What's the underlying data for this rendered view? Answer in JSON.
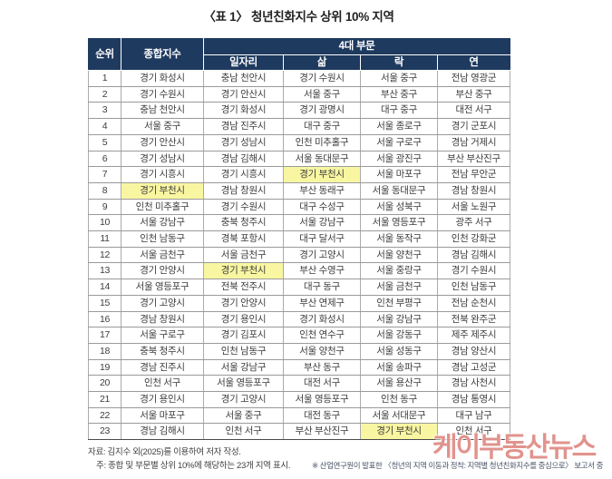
{
  "title": "〈표 1〉 청년친화지수 상위 10% 지역",
  "table": {
    "header": {
      "rank": "순위",
      "composite": "종합지수",
      "group": "4대 부문",
      "sectors": [
        "일자리",
        "삶",
        "락",
        "연"
      ]
    },
    "rows": [
      [
        "1",
        "경기 화성시",
        "충남 천안시",
        "경기 수원시",
        "서울 중구",
        "전남 영광군"
      ],
      [
        "2",
        "경기 수원시",
        "경기 안산시",
        "서울 중구",
        "부산 중구",
        "부산 중구"
      ],
      [
        "3",
        "충남 천안시",
        "경기 화성시",
        "경기 광명시",
        "대구 중구",
        "대전 서구"
      ],
      [
        "4",
        "서울 중구",
        "경남 진주시",
        "대구 중구",
        "서울 종로구",
        "경기 군포시"
      ],
      [
        "5",
        "경기 안산시",
        "경기 성남시",
        "인천 미추홀구",
        "서울 구로구",
        "경남 거제시"
      ],
      [
        "6",
        "경기 성남시",
        "경남 김해시",
        "서울 동대문구",
        "서울 광진구",
        "부산 부산진구"
      ],
      [
        "7",
        "경기 시흥시",
        "경기 시흥시",
        "경기 부천시",
        "서울 마포구",
        "전남 무안군"
      ],
      [
        "8",
        "경기 부천시",
        "경남 창원시",
        "부산 동래구",
        "서울 동대문구",
        "경남 창원시"
      ],
      [
        "9",
        "인천 미추홀구",
        "경기 수원시",
        "대구 수성구",
        "서울 성북구",
        "서울 노원구"
      ],
      [
        "10",
        "서울 강남구",
        "충북 청주시",
        "서울 강남구",
        "서울 영등포구",
        "광주 서구"
      ],
      [
        "11",
        "인천 남동구",
        "경북 포항시",
        "대구 달서구",
        "서울 동작구",
        "인천 강화군"
      ],
      [
        "12",
        "서울 금천구",
        "서울 금천구",
        "경기 고양시",
        "서울 양천구",
        "경남 김해시"
      ],
      [
        "13",
        "경기 안양시",
        "경기 부천시",
        "부산 수영구",
        "서울 중랑구",
        "경기 수원시"
      ],
      [
        "14",
        "서울 영등포구",
        "전북 전주시",
        "대구 동구",
        "서울 금천구",
        "인천 남동구"
      ],
      [
        "15",
        "경기 고양시",
        "경기 안양시",
        "부산 연제구",
        "인천 부평구",
        "전남 순천시"
      ],
      [
        "16",
        "경남 창원시",
        "경기 용인시",
        "경기 화성시",
        "서울 강남구",
        "전북 완주군"
      ],
      [
        "17",
        "서울 구로구",
        "경기 김포시",
        "인천 연수구",
        "서울 강동구",
        "제주 제주시"
      ],
      [
        "18",
        "충북 청주시",
        "인천 남동구",
        "서울 양천구",
        "서울 성동구",
        "경남 양산시"
      ],
      [
        "19",
        "경남 진주시",
        "서울 강남구",
        "부산 동구",
        "서울 송파구",
        "경남 고성군"
      ],
      [
        "20",
        "인천 서구",
        "서울 영등포구",
        "대전 서구",
        "서울 용산구",
        "경남 사천시"
      ],
      [
        "21",
        "경기 용인시",
        "경기 고양시",
        "서울 영등포구",
        "인천 동구",
        "경남 통영시"
      ],
      [
        "22",
        "서울 마포구",
        "서울 중구",
        "대전 동구",
        "서울 서대문구",
        "대구 남구"
      ],
      [
        "23",
        "경남 김해시",
        "인천 서구",
        "부산 부산진구",
        "경기 부천시",
        "인천 서구"
      ]
    ],
    "highlights": [
      [
        6,
        3
      ],
      [
        7,
        1
      ],
      [
        12,
        2
      ],
      [
        22,
        4
      ]
    ]
  },
  "footnotes": {
    "source": "자료: 김지수 외(2025)를 이용하여 저자 작성.",
    "note": "주: 종합 및 부문별 상위 10%에 해당하는 23개 지역 표시.",
    "reference": "※ 산업연구원이 발표한 〈청년의 지역 이동과 정착: 지역별 청년친화지수를 중심으로〉 보고서 중"
  },
  "watermark": "케이부동산뉴스",
  "colors": {
    "header_bg": "#1f3a5f",
    "highlight_bg": "#f9f6a2",
    "watermark_red": "#c93a30"
  }
}
